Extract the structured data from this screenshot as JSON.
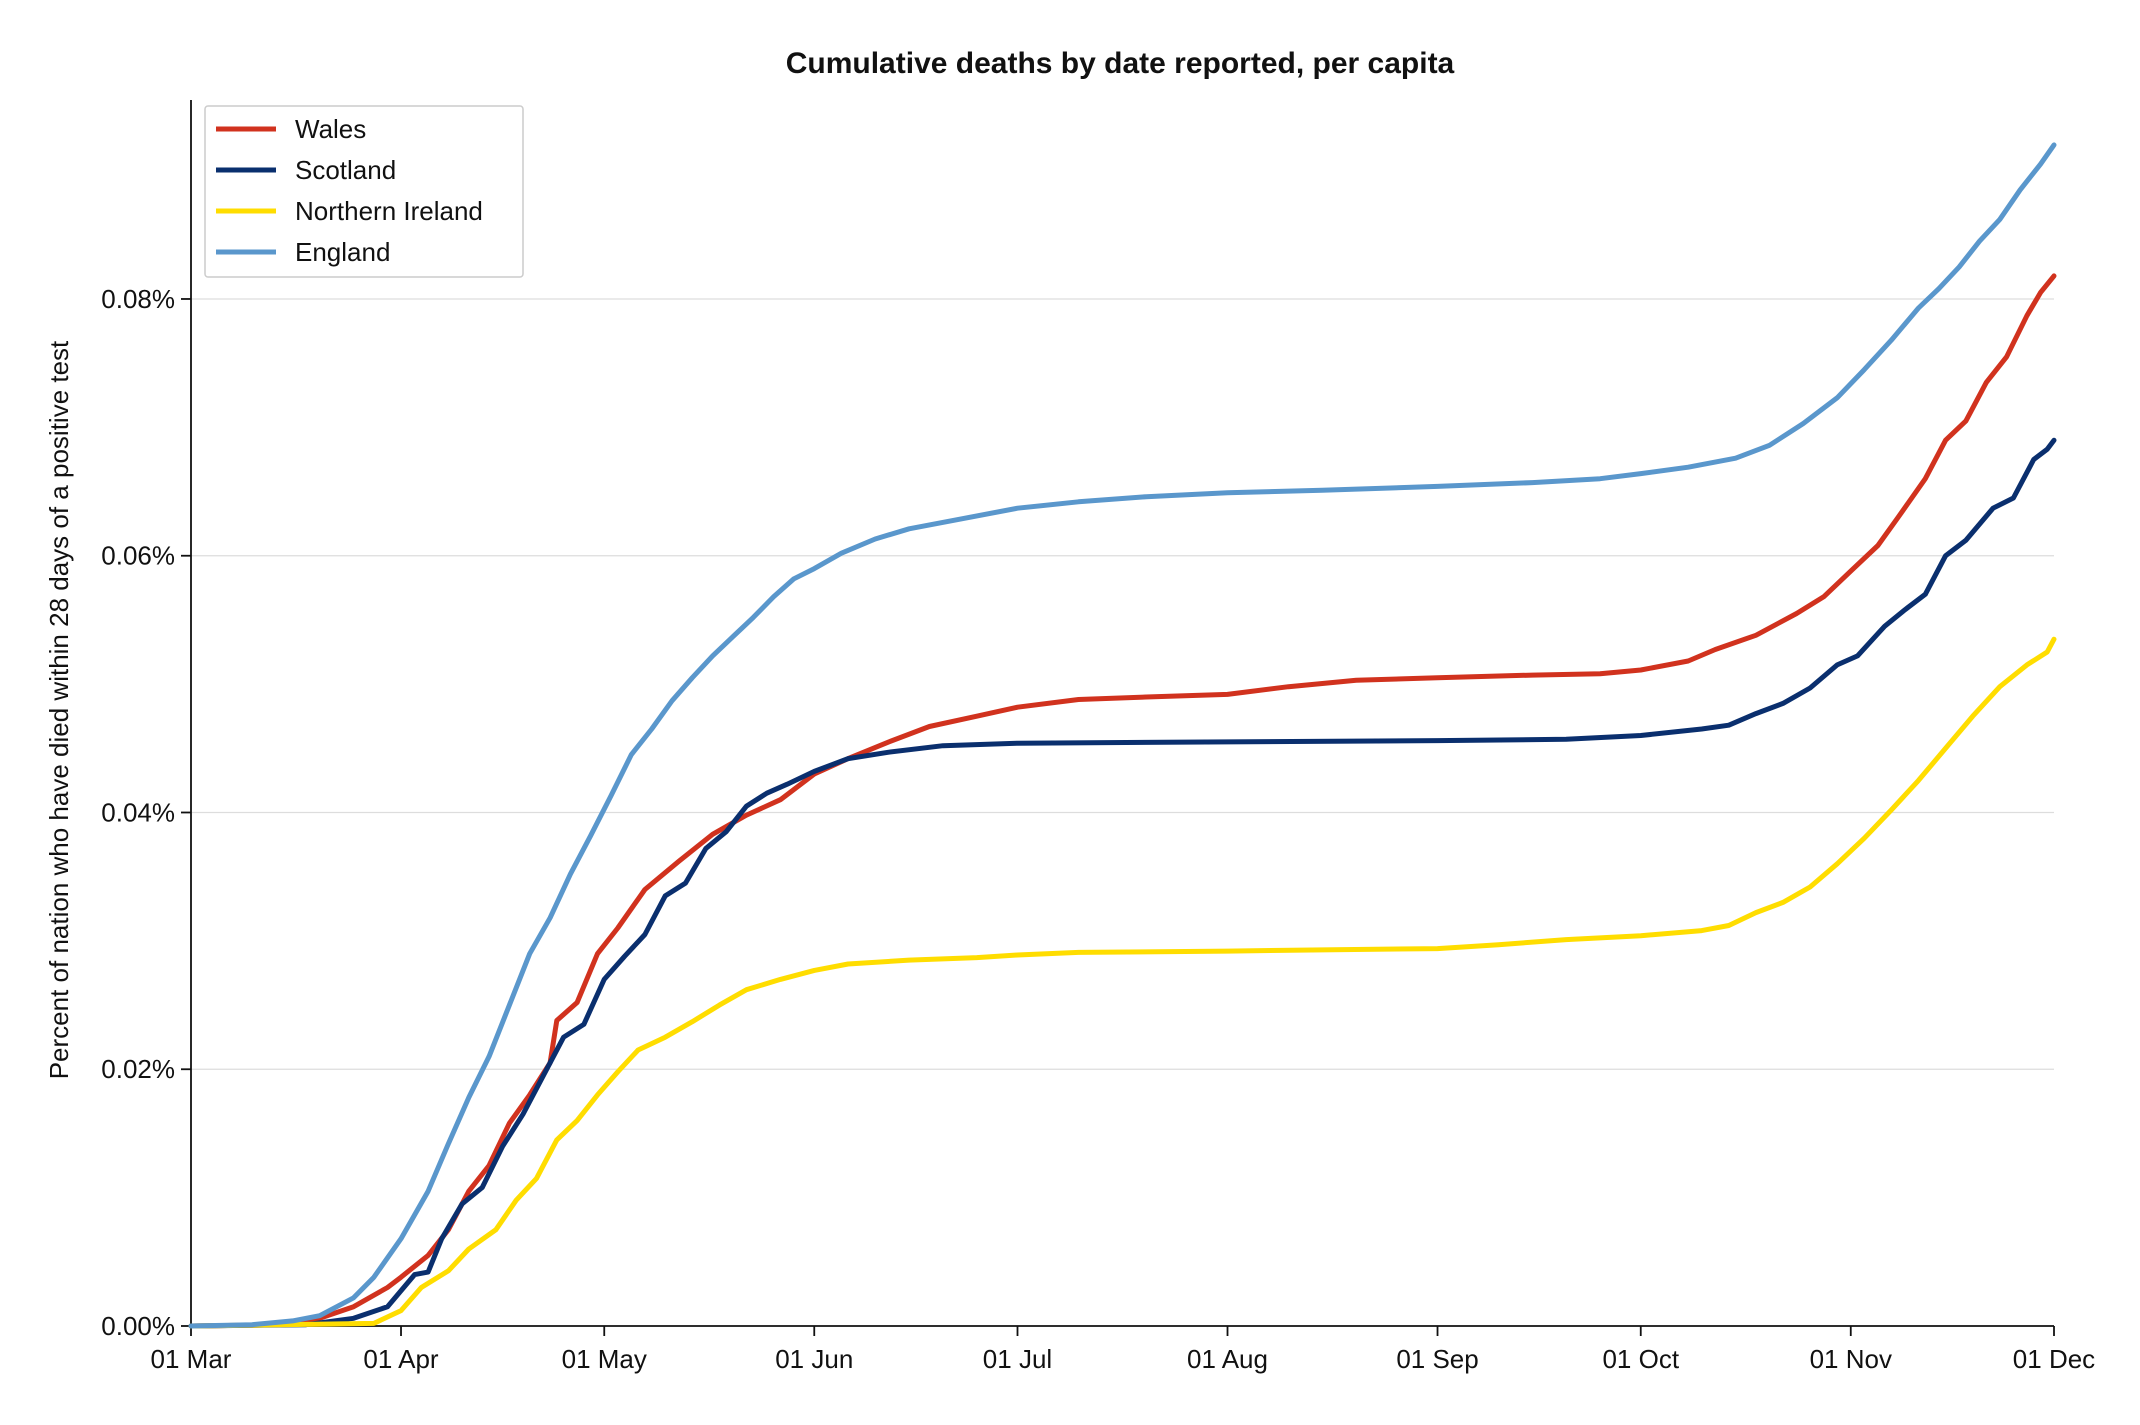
{
  "chart_data": {
    "type": "line",
    "title": "Cumulative deaths by date reported, per capita",
    "xlabel": "",
    "ylabel": "Percent of nation who have died within 28 days of a positive test",
    "xlim": [
      "2020-03-01",
      "2020-12-01"
    ],
    "ylim": [
      0,
      0.0955
    ],
    "y_ticks": [
      0,
      0.02,
      0.04,
      0.06,
      0.08
    ],
    "y_tick_labels": [
      "0.00%",
      "0.02%",
      "0.04%",
      "0.06%",
      "0.08%"
    ],
    "x_ticks": [
      "2020-03-01",
      "2020-04-01",
      "2020-05-01",
      "2020-06-01",
      "2020-07-01",
      "2020-08-01",
      "2020-09-01",
      "2020-10-01",
      "2020-11-01",
      "2020-12-01"
    ],
    "x_tick_labels": [
      "01 Mar",
      "01 Apr",
      "01 May",
      "01 Jun",
      "01 Jul",
      "01 Aug",
      "01 Sep",
      "01 Oct",
      "01 Nov",
      "01 Dec"
    ],
    "grid": "horizontal",
    "legend_position": "top-left",
    "series": [
      {
        "name": "Wales",
        "color": "#d1321e",
        "points": [
          [
            "2020-03-01",
            0
          ],
          [
            "2020-03-15",
            0.0001
          ],
          [
            "2020-03-20",
            0.0006
          ],
          [
            "2020-03-25",
            0.0015
          ],
          [
            "2020-03-30",
            0.003
          ],
          [
            "2020-04-01",
            0.0038
          ],
          [
            "2020-04-05",
            0.0055
          ],
          [
            "2020-04-08",
            0.0075
          ],
          [
            "2020-04-11",
            0.0105
          ],
          [
            "2020-04-14",
            0.0125
          ],
          [
            "2020-04-17",
            0.0158
          ],
          [
            "2020-04-20",
            0.018
          ],
          [
            "2020-04-23",
            0.0205
          ],
          [
            "2020-04-24",
            0.0238
          ],
          [
            "2020-04-27",
            0.0252
          ],
          [
            "2020-04-30",
            0.029
          ],
          [
            "2020-05-03",
            0.031
          ],
          [
            "2020-05-07",
            0.034
          ],
          [
            "2020-05-12",
            0.0362
          ],
          [
            "2020-05-17",
            0.0383
          ],
          [
            "2020-05-22",
            0.0398
          ],
          [
            "2020-05-27",
            0.041
          ],
          [
            "2020-06-01",
            0.043
          ],
          [
            "2020-06-06",
            0.0442
          ],
          [
            "2020-06-12",
            0.0455
          ],
          [
            "2020-06-18",
            0.0467
          ],
          [
            "2020-06-25",
            0.0475
          ],
          [
            "2020-07-01",
            0.0482
          ],
          [
            "2020-07-10",
            0.0488
          ],
          [
            "2020-07-20",
            0.049
          ],
          [
            "2020-08-01",
            0.0492
          ],
          [
            "2020-08-10",
            0.0498
          ],
          [
            "2020-08-20",
            0.0503
          ],
          [
            "2020-09-01",
            0.0505
          ],
          [
            "2020-09-15",
            0.0507
          ],
          [
            "2020-09-25",
            0.0508
          ],
          [
            "2020-10-01",
            0.0511
          ],
          [
            "2020-10-08",
            0.0518
          ],
          [
            "2020-10-12",
            0.0527
          ],
          [
            "2020-10-18",
            0.0538
          ],
          [
            "2020-10-24",
            0.0555
          ],
          [
            "2020-10-28",
            0.0568
          ],
          [
            "2020-11-01",
            0.0588
          ],
          [
            "2020-11-05",
            0.0608
          ],
          [
            "2020-11-08",
            0.063
          ],
          [
            "2020-11-12",
            0.066
          ],
          [
            "2020-11-15",
            0.069
          ],
          [
            "2020-11-18",
            0.0705
          ],
          [
            "2020-11-21",
            0.0735
          ],
          [
            "2020-11-24",
            0.0755
          ],
          [
            "2020-11-27",
            0.0787
          ],
          [
            "2020-11-29",
            0.0805
          ],
          [
            "2020-12-01",
            0.0818
          ]
        ]
      },
      {
        "name": "Scotland",
        "color": "#0a2f6e",
        "points": [
          [
            "2020-03-01",
            0
          ],
          [
            "2020-03-18",
            0.0001
          ],
          [
            "2020-03-25",
            0.0006
          ],
          [
            "2020-03-30",
            0.0015
          ],
          [
            "2020-04-03",
            0.004
          ],
          [
            "2020-04-05",
            0.0042
          ],
          [
            "2020-04-07",
            0.0068
          ],
          [
            "2020-04-10",
            0.0095
          ],
          [
            "2020-04-13",
            0.0108
          ],
          [
            "2020-04-16",
            0.014
          ],
          [
            "2020-04-19",
            0.0165
          ],
          [
            "2020-04-22",
            0.0195
          ],
          [
            "2020-04-25",
            0.0225
          ],
          [
            "2020-04-28",
            0.0235
          ],
          [
            "2020-05-01",
            0.027
          ],
          [
            "2020-05-04",
            0.0288
          ],
          [
            "2020-05-07",
            0.0305
          ],
          [
            "2020-05-10",
            0.0335
          ],
          [
            "2020-05-13",
            0.0345
          ],
          [
            "2020-05-16",
            0.0372
          ],
          [
            "2020-05-19",
            0.0385
          ],
          [
            "2020-05-22",
            0.0405
          ],
          [
            "2020-05-25",
            0.0415
          ],
          [
            "2020-05-28",
            0.0422
          ],
          [
            "2020-06-01",
            0.0432
          ],
          [
            "2020-06-06",
            0.0442
          ],
          [
            "2020-06-12",
            0.0447
          ],
          [
            "2020-06-20",
            0.0452
          ],
          [
            "2020-07-01",
            0.0454
          ],
          [
            "2020-08-01",
            0.0455
          ],
          [
            "2020-09-01",
            0.0456
          ],
          [
            "2020-09-20",
            0.0457
          ],
          [
            "2020-10-01",
            0.046
          ],
          [
            "2020-10-10",
            0.0465
          ],
          [
            "2020-10-14",
            0.0468
          ],
          [
            "2020-10-18",
            0.0477
          ],
          [
            "2020-10-22",
            0.0485
          ],
          [
            "2020-10-26",
            0.0497
          ],
          [
            "2020-10-30",
            0.0515
          ],
          [
            "2020-11-02",
            0.0522
          ],
          [
            "2020-11-06",
            0.0545
          ],
          [
            "2020-11-09",
            0.0558
          ],
          [
            "2020-11-12",
            0.057
          ],
          [
            "2020-11-15",
            0.06
          ],
          [
            "2020-11-18",
            0.0612
          ],
          [
            "2020-11-22",
            0.0637
          ],
          [
            "2020-11-25",
            0.0645
          ],
          [
            "2020-11-28",
            0.0675
          ],
          [
            "2020-11-30",
            0.0683
          ],
          [
            "2020-12-01",
            0.069
          ]
        ]
      },
      {
        "name": "Northern Ireland",
        "color": "#ffdd00",
        "points": [
          [
            "2020-03-01",
            0
          ],
          [
            "2020-03-28",
            0.0002
          ],
          [
            "2020-04-01",
            0.0012
          ],
          [
            "2020-04-04",
            0.003
          ],
          [
            "2020-04-08",
            0.0043
          ],
          [
            "2020-04-11",
            0.006
          ],
          [
            "2020-04-15",
            0.0075
          ],
          [
            "2020-04-18",
            0.0098
          ],
          [
            "2020-04-21",
            0.0115
          ],
          [
            "2020-04-24",
            0.0145
          ],
          [
            "2020-04-27",
            0.016
          ],
          [
            "2020-04-30",
            0.018
          ],
          [
            "2020-05-03",
            0.0198
          ],
          [
            "2020-05-06",
            0.0215
          ],
          [
            "2020-05-10",
            0.0225
          ],
          [
            "2020-05-14",
            0.0237
          ],
          [
            "2020-05-18",
            0.025
          ],
          [
            "2020-05-22",
            0.0262
          ],
          [
            "2020-05-27",
            0.027
          ],
          [
            "2020-06-01",
            0.0277
          ],
          [
            "2020-06-06",
            0.0282
          ],
          [
            "2020-06-15",
            0.0285
          ],
          [
            "2020-06-25",
            0.0287
          ],
          [
            "2020-07-01",
            0.0289
          ],
          [
            "2020-07-10",
            0.0291
          ],
          [
            "2020-08-01",
            0.0292
          ],
          [
            "2020-08-15",
            0.0293
          ],
          [
            "2020-09-01",
            0.0294
          ],
          [
            "2020-09-10",
            0.0297
          ],
          [
            "2020-09-20",
            0.0301
          ],
          [
            "2020-10-01",
            0.0304
          ],
          [
            "2020-10-10",
            0.0308
          ],
          [
            "2020-10-14",
            0.0312
          ],
          [
            "2020-10-18",
            0.0322
          ],
          [
            "2020-10-22",
            0.033
          ],
          [
            "2020-10-26",
            0.0342
          ],
          [
            "2020-10-30",
            0.036
          ],
          [
            "2020-11-03",
            0.038
          ],
          [
            "2020-11-07",
            0.0402
          ],
          [
            "2020-11-11",
            0.0425
          ],
          [
            "2020-11-15",
            0.045
          ],
          [
            "2020-11-19",
            0.0475
          ],
          [
            "2020-11-23",
            0.0498
          ],
          [
            "2020-11-27",
            0.0515
          ],
          [
            "2020-11-30",
            0.0525
          ],
          [
            "2020-12-01",
            0.0535
          ]
        ]
      },
      {
        "name": "England",
        "color": "#5a97cc",
        "points": [
          [
            "2020-03-01",
            0
          ],
          [
            "2020-03-10",
            0.0001
          ],
          [
            "2020-03-16",
            0.0004
          ],
          [
            "2020-03-20",
            0.0008
          ],
          [
            "2020-03-25",
            0.0022
          ],
          [
            "2020-03-28",
            0.0038
          ],
          [
            "2020-04-01",
            0.0068
          ],
          [
            "2020-04-05",
            0.0105
          ],
          [
            "2020-04-08",
            0.0142
          ],
          [
            "2020-04-11",
            0.0178
          ],
          [
            "2020-04-14",
            0.021
          ],
          [
            "2020-04-17",
            0.025
          ],
          [
            "2020-04-20",
            0.029
          ],
          [
            "2020-04-23",
            0.0318
          ],
          [
            "2020-04-26",
            0.0352
          ],
          [
            "2020-04-29",
            0.0382
          ],
          [
            "2020-05-02",
            0.0413
          ],
          [
            "2020-05-05",
            0.0445
          ],
          [
            "2020-05-08",
            0.0465
          ],
          [
            "2020-05-11",
            0.0487
          ],
          [
            "2020-05-14",
            0.0505
          ],
          [
            "2020-05-17",
            0.0522
          ],
          [
            "2020-05-20",
            0.0537
          ],
          [
            "2020-05-23",
            0.0552
          ],
          [
            "2020-05-26",
            0.0568
          ],
          [
            "2020-05-29",
            0.0582
          ],
          [
            "2020-06-01",
            0.059
          ],
          [
            "2020-06-05",
            0.0602
          ],
          [
            "2020-06-10",
            0.0613
          ],
          [
            "2020-06-15",
            0.0621
          ],
          [
            "2020-06-22",
            0.0628
          ],
          [
            "2020-07-01",
            0.0637
          ],
          [
            "2020-07-10",
            0.0642
          ],
          [
            "2020-07-20",
            0.0646
          ],
          [
            "2020-08-01",
            0.0649
          ],
          [
            "2020-08-15",
            0.0651
          ],
          [
            "2020-09-01",
            0.0654
          ],
          [
            "2020-09-15",
            0.0657
          ],
          [
            "2020-09-25",
            0.066
          ],
          [
            "2020-10-01",
            0.0664
          ],
          [
            "2020-10-08",
            0.0669
          ],
          [
            "2020-10-15",
            0.0676
          ],
          [
            "2020-10-20",
            0.0686
          ],
          [
            "2020-10-25",
            0.0703
          ],
          [
            "2020-10-30",
            0.0723
          ],
          [
            "2020-11-03",
            0.0745
          ],
          [
            "2020-11-07",
            0.0768
          ],
          [
            "2020-11-11",
            0.0793
          ],
          [
            "2020-11-14",
            0.0808
          ],
          [
            "2020-11-17",
            0.0825
          ],
          [
            "2020-11-20",
            0.0845
          ],
          [
            "2020-11-23",
            0.0862
          ],
          [
            "2020-11-26",
            0.0885
          ],
          [
            "2020-11-29",
            0.0905
          ],
          [
            "2020-12-01",
            0.092
          ]
        ]
      }
    ]
  }
}
